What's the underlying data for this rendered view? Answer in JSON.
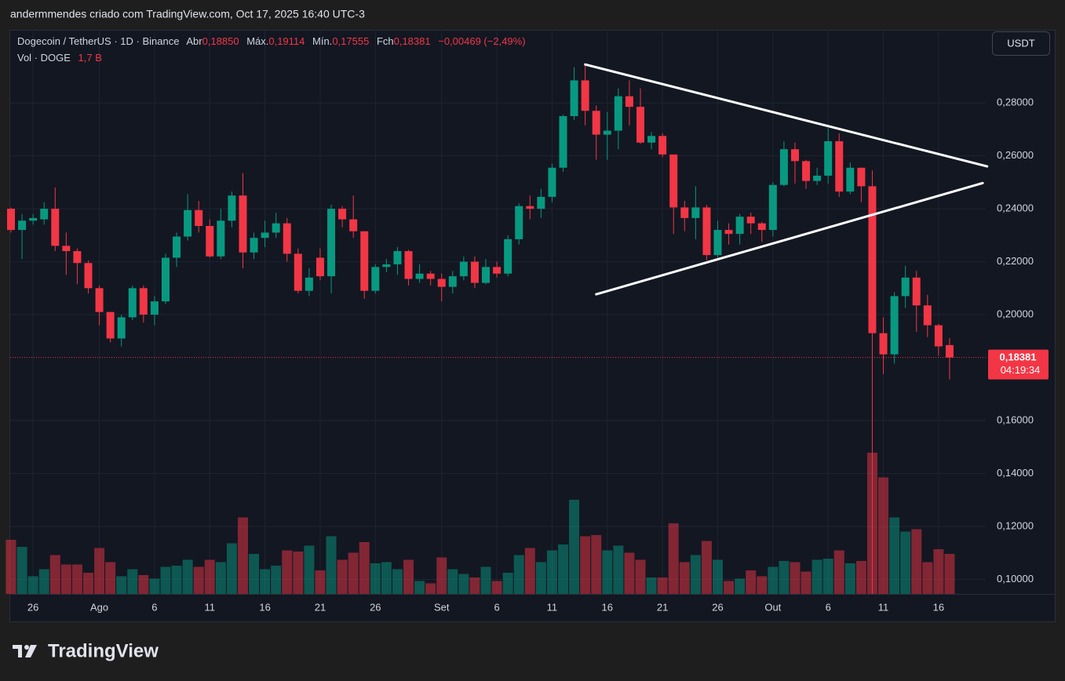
{
  "header": "andermmendes criado com TradingView.com, Oct 17, 2025 16:40 UTC-3",
  "chart_data": {
    "type": "candlestick",
    "title": "Dogecoin / TetherUS · 1D · Binance",
    "legend": [
      {
        "label": "Abr",
        "value": "0,18850"
      },
      {
        "label": "Máx.",
        "value": "0,19114"
      },
      {
        "label": "Mín.",
        "value": "0,17555"
      },
      {
        "label": "Fch",
        "value": "0,18381"
      }
    ],
    "change": "−0,00469 (−2,49%)",
    "volume_title": "Vol · DOGE",
    "volume_last_label": "1,7 B",
    "currency": "USDT",
    "last_price_label": "0,18381",
    "countdown": "04:19:34",
    "categories": [
      null,
      null,
      "26",
      null,
      null,
      null,
      null,
      null,
      "Ago",
      null,
      null,
      null,
      null,
      "6",
      null,
      null,
      null,
      null,
      "11",
      null,
      null,
      null,
      null,
      "16",
      null,
      null,
      null,
      null,
      "21",
      null,
      null,
      null,
      null,
      "26",
      null,
      null,
      null,
      null,
      null,
      "Set",
      null,
      null,
      null,
      null,
      "6",
      null,
      null,
      null,
      null,
      "11",
      null,
      null,
      null,
      null,
      "16",
      null,
      null,
      null,
      null,
      "21",
      null,
      null,
      null,
      null,
      "26",
      null,
      null,
      null,
      null,
      "Out",
      null,
      null,
      null,
      null,
      "6",
      null,
      null,
      null,
      null,
      "11",
      null,
      null,
      null,
      null,
      "16",
      null
    ],
    "open": [
      0.24,
      0.232,
      0.2355,
      0.236,
      0.24,
      0.226,
      0.224,
      0.2195,
      0.21,
      0.201,
      0.191,
      0.199,
      0.21,
      0.2,
      0.205,
      0.2215,
      0.2295,
      0.2395,
      0.2335,
      0.222,
      0.2355,
      0.245,
      0.2235,
      0.229,
      0.231,
      0.2345,
      0.223,
      0.209,
      0.2215,
      0.2145,
      0.24,
      0.236,
      0.2315,
      0.209,
      0.218,
      0.219,
      0.224,
      0.2135,
      0.2155,
      0.2135,
      0.2105,
      0.2145,
      0.22,
      0.212,
      0.218,
      0.2155,
      0.2285,
      0.241,
      0.24,
      0.2445,
      0.2555,
      0.275,
      0.2885,
      0.277,
      0.268,
      0.2695,
      0.2825,
      0.2785,
      0.265,
      0.2675,
      0.2605,
      0.2405,
      0.2365,
      0.2405,
      0.2225,
      0.232,
      0.2305,
      0.237,
      0.2345,
      0.232,
      0.249,
      0.2625,
      0.258,
      0.2505,
      0.2525,
      0.2655,
      0.2465,
      0.2555,
      0.2485,
      0.193,
      0.185,
      0.207,
      0.214,
      0.2035,
      0.196,
      0.1885
    ],
    "high": [
      0.2405,
      0.238,
      0.238,
      0.2425,
      0.248,
      0.231,
      0.225,
      0.2205,
      0.211,
      0.201,
      0.2,
      0.211,
      0.211,
      0.207,
      0.223,
      0.231,
      0.2455,
      0.243,
      0.236,
      0.24,
      0.2465,
      0.2535,
      0.231,
      0.2355,
      0.2385,
      0.2365,
      0.225,
      0.2175,
      0.225,
      0.2415,
      0.241,
      0.245,
      0.2315,
      0.219,
      0.221,
      0.2255,
      0.2245,
      0.219,
      0.2165,
      0.2155,
      0.2165,
      0.222,
      0.222,
      0.221,
      0.22,
      0.23,
      0.242,
      0.245,
      0.2475,
      0.257,
      0.2755,
      0.2935,
      0.2945,
      0.279,
      0.2765,
      0.2855,
      0.2885,
      0.2855,
      0.269,
      0.2685,
      0.2605,
      0.243,
      0.2485,
      0.2415,
      0.2355,
      0.2345,
      0.238,
      0.2385,
      0.235,
      0.25,
      0.2655,
      0.265,
      0.2585,
      0.2555,
      0.2705,
      0.2685,
      0.2575,
      0.2555,
      0.2545,
      0.199,
      0.2085,
      0.2185,
      0.2165,
      0.2075,
      0.1965,
      0.19114
    ],
    "low": [
      0.231,
      0.221,
      0.234,
      0.234,
      0.224,
      0.215,
      0.2115,
      0.208,
      0.196,
      0.1895,
      0.188,
      0.198,
      0.197,
      0.196,
      0.204,
      0.218,
      0.228,
      0.231,
      0.2215,
      0.221,
      0.233,
      0.2175,
      0.221,
      0.2255,
      0.229,
      0.22,
      0.208,
      0.207,
      0.213,
      0.208,
      0.233,
      0.229,
      0.206,
      0.208,
      0.216,
      0.215,
      0.211,
      0.212,
      0.211,
      0.205,
      0.208,
      0.213,
      0.21,
      0.2115,
      0.214,
      0.2145,
      0.2265,
      0.236,
      0.2365,
      0.2425,
      0.254,
      0.2735,
      0.2715,
      0.2585,
      0.2585,
      0.2625,
      0.2715,
      0.2645,
      0.2625,
      0.2595,
      0.2305,
      0.2315,
      0.2285,
      0.2205,
      0.2215,
      0.2265,
      0.2265,
      0.2305,
      0.2275,
      0.2295,
      0.2485,
      0.2495,
      0.2475,
      0.249,
      0.2495,
      0.2445,
      0.2455,
      0.2425,
      0.0945,
      0.1775,
      0.1815,
      0.2025,
      0.1935,
      0.1915,
      0.1845,
      0.17555
    ],
    "close": [
      0.232,
      0.2355,
      0.2365,
      0.24,
      0.226,
      0.224,
      0.2195,
      0.21,
      0.201,
      0.191,
      0.199,
      0.21,
      0.2,
      0.205,
      0.2215,
      0.2295,
      0.2395,
      0.2335,
      0.222,
      0.2355,
      0.245,
      0.2235,
      0.229,
      0.231,
      0.2345,
      0.223,
      0.209,
      0.214,
      0.2145,
      0.24,
      0.236,
      0.2315,
      0.209,
      0.218,
      0.219,
      0.224,
      0.2135,
      0.2155,
      0.2135,
      0.2105,
      0.2145,
      0.22,
      0.212,
      0.218,
      0.2155,
      0.2285,
      0.241,
      0.24,
      0.2445,
      0.2555,
      0.275,
      0.2885,
      0.277,
      0.268,
      0.2695,
      0.2825,
      0.2785,
      0.265,
      0.2675,
      0.2605,
      0.2405,
      0.2365,
      0.2405,
      0.2225,
      0.232,
      0.2305,
      0.237,
      0.2345,
      0.232,
      0.249,
      0.2625,
      0.258,
      0.2505,
      0.2525,
      0.2655,
      0.2465,
      0.2555,
      0.2485,
      0.193,
      0.185,
      0.207,
      0.214,
      0.2035,
      0.196,
      0.188,
      0.18381
    ],
    "volume": [
      2.3,
      2.0,
      0.75,
      1.05,
      1.65,
      1.25,
      1.25,
      0.9,
      1.95,
      1.35,
      0.75,
      1.05,
      0.8,
      0.65,
      1.15,
      1.2,
      1.45,
      1.15,
      1.45,
      1.35,
      2.15,
      3.25,
      1.7,
      1.05,
      1.2,
      1.85,
      1.8,
      2.05,
      1.0,
      2.45,
      1.45,
      1.75,
      2.2,
      1.3,
      1.35,
      1.05,
      1.45,
      0.55,
      0.45,
      1.55,
      1.05,
      0.85,
      0.7,
      1.15,
      0.55,
      0.9,
      1.65,
      1.95,
      1.35,
      1.85,
      2.1,
      4.0,
      2.45,
      2.5,
      1.85,
      2.05,
      1.75,
      1.45,
      0.7,
      0.7,
      3.0,
      1.35,
      1.65,
      2.25,
      1.45,
      0.55,
      0.65,
      1.0,
      0.75,
      1.15,
      1.4,
      1.35,
      0.95,
      1.45,
      1.5,
      1.85,
      1.3,
      1.4,
      6.0,
      4.95,
      3.25,
      2.65,
      2.75,
      1.35,
      1.9,
      1.7
    ],
    "colors": {
      "up": "#089981",
      "down": "#f23645"
    },
    "ylim": [
      0.0945,
      0.3076
    ],
    "yticks": [
      {
        "value": 0.1,
        "label": "0,10000"
      },
      {
        "value": 0.12,
        "label": "0,12000"
      },
      {
        "value": 0.14,
        "label": "0,14000"
      },
      {
        "value": 0.16,
        "label": "0,16000"
      },
      {
        "value": 0.2,
        "label": "0,20000"
      },
      {
        "value": 0.22,
        "label": "0,22000"
      },
      {
        "value": 0.24,
        "label": "0,24000"
      },
      {
        "value": 0.26,
        "label": "0,26000"
      },
      {
        "value": 0.28,
        "label": "0,28000"
      }
    ],
    "trendlines": [
      {
        "x": [
          52,
          88.4
        ],
        "y": [
          0.2945,
          0.256
        ],
        "color": "#ffffff"
      },
      {
        "x": [
          53,
          88
        ],
        "y": [
          0.2077,
          0.2497
        ],
        "color": "#ffffff"
      }
    ],
    "grid": true
  },
  "footer": {
    "logo": "TradingView"
  }
}
